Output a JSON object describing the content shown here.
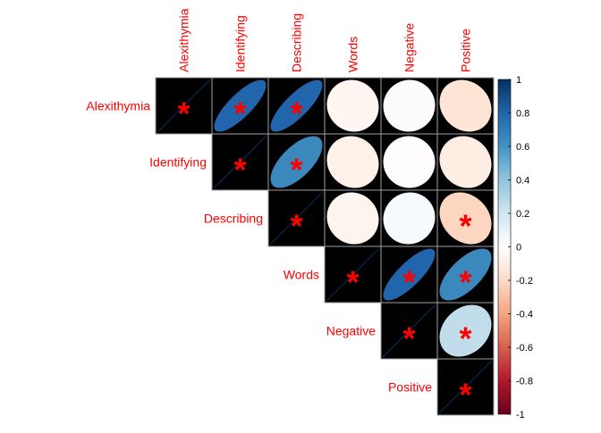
{
  "chart_data": {
    "type": "heatmap",
    "subtype": "correlation-matrix-upper-ellipse",
    "variables": [
      "Alexithymia",
      "Identifying",
      "Describing",
      "Words",
      "Negative",
      "Positive"
    ],
    "matrix": [
      [
        1.0,
        0.8,
        0.8,
        -0.05,
        0.02,
        -0.15
      ],
      [
        0.8,
        1.0,
        0.65,
        -0.08,
        -0.01,
        -0.1
      ],
      [
        0.8,
        0.65,
        1.0,
        -0.06,
        0.04,
        -0.22
      ],
      [
        -0.05,
        -0.08,
        -0.06,
        1.0,
        0.8,
        0.65
      ],
      [
        0.02,
        -0.01,
        0.04,
        0.8,
        1.0,
        0.25
      ],
      [
        -0.15,
        -0.1,
        -0.22,
        0.65,
        0.25,
        1.0
      ]
    ],
    "significant": [
      [
        0,
        0
      ],
      [
        0,
        1
      ],
      [
        0,
        2
      ],
      [
        1,
        1
      ],
      [
        1,
        2
      ],
      [
        2,
        2
      ],
      [
        2,
        5
      ],
      [
        3,
        3
      ],
      [
        3,
        4
      ],
      [
        3,
        5
      ],
      [
        4,
        4
      ],
      [
        4,
        5
      ],
      [
        5,
        5
      ]
    ],
    "significance_mark": "*",
    "colorbar": {
      "range": [
        -1,
        1
      ],
      "ticks": [
        "1",
        "0.8",
        "0.6",
        "0.4",
        "0.2",
        "0",
        "-0.2",
        "-0.4",
        "-0.6",
        "-0.8",
        "-1"
      ],
      "tick_values": [
        1,
        0.8,
        0.6,
        0.4,
        0.2,
        0,
        -0.2,
        -0.4,
        -0.6,
        -0.8,
        -1
      ],
      "placement": "right"
    },
    "colors": {
      "label": "#ff0000",
      "star": "#ff0000",
      "diagonal_bg": "#000000",
      "grid": "#a0a0a0",
      "palette": [
        "#67001F",
        "#B2182B",
        "#D6604D",
        "#F4A582",
        "#FDDBC7",
        "#FFFFFF",
        "#D1E5F0",
        "#92C5DE",
        "#4393C3",
        "#2166AC",
        "#053061"
      ]
    }
  }
}
